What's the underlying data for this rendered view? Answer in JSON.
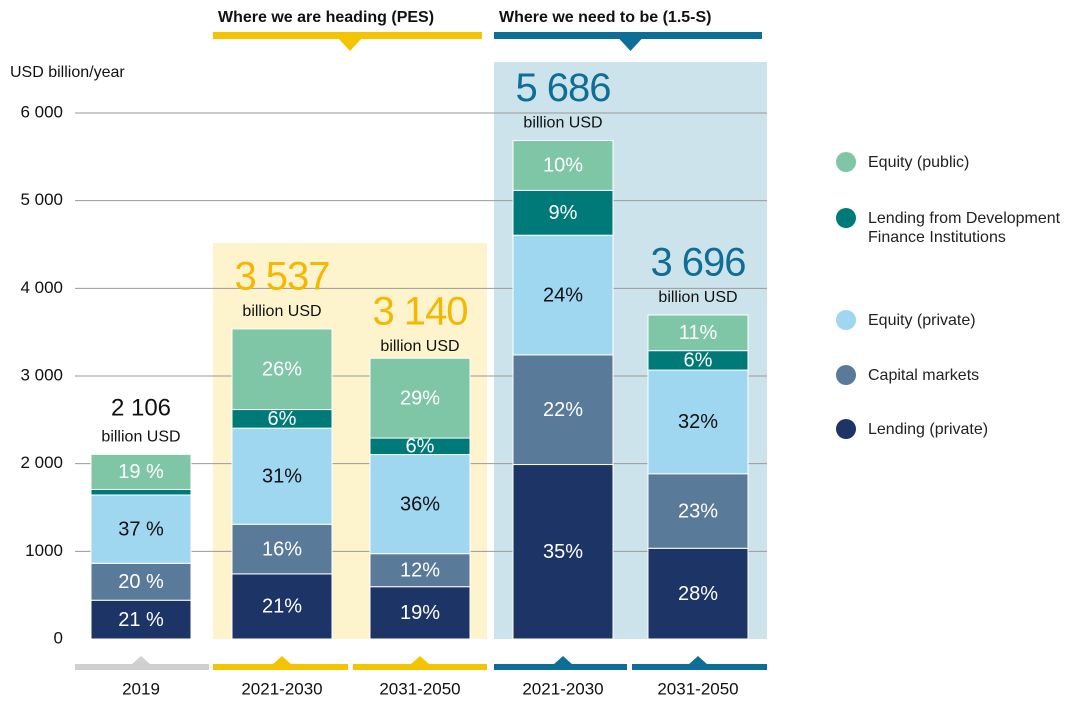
{
  "chart_data": {
    "type": "stacked_bar",
    "y_axis_label": "USD billion/year",
    "categories": [
      "2019",
      "2021-2030",
      "2031-2050",
      "2021-2030",
      "2031-2050"
    ],
    "groups": [
      {
        "label": "Where we are heading (PES)",
        "color": "#f5c400",
        "background": "#fdf3cc"
      },
      {
        "label": "Where we need to be (1.5-S)",
        "color": "#0e6f96",
        "background": "#cde3ec"
      }
    ],
    "ylim": [
      0,
      6000
    ],
    "yticks": [
      0,
      {
        "value": 1000,
        "label": "1000"
      },
      {
        "value": 2000,
        "label": "2 000"
      },
      {
        "value": 3000,
        "label": "3 000"
      },
      {
        "value": 4000,
        "label": "4 000"
      },
      {
        "value": 5000,
        "label": "5 000"
      },
      {
        "value": 6000,
        "label": "6 000"
      }
    ],
    "grid": true,
    "totals": {
      "values": [
        2106,
        3537,
        3140,
        5686,
        3696
      ],
      "value_labels": [
        "2 106",
        "3 537",
        "3 140",
        "5 686",
        "3 696"
      ],
      "unit": "billion USD"
    },
    "series": [
      {
        "name": "Lending (private)",
        "color": "#1d3466",
        "values": [
          21,
          21,
          19,
          35,
          28
        ],
        "value_labels": [
          "21 %",
          "21%",
          "19%",
          "35%",
          "28%"
        ]
      },
      {
        "name": "Capital markets",
        "color": "#5a7a99",
        "values": [
          20,
          16,
          12,
          22,
          23
        ],
        "value_labels": [
          "20 %",
          "16%",
          "12%",
          "22%",
          "23%"
        ]
      },
      {
        "name": "Equity (private)",
        "color": "#9fd6f0",
        "values": [
          37,
          31,
          36,
          24,
          32
        ],
        "value_labels": [
          "37 %",
          "31%",
          "36%",
          "24%",
          "32%"
        ]
      },
      {
        "name": "Lending from Development Finance Institutions",
        "color": "#007a78",
        "values": [
          3,
          6,
          6,
          9,
          6
        ],
        "value_labels": [
          null,
          "6%",
          "6%",
          "9%",
          "6%"
        ]
      },
      {
        "name": "Equity (public)",
        "color": "#7fc6a6",
        "values": [
          19,
          26,
          29,
          10,
          11
        ],
        "value_labels": [
          "19 %",
          "26%",
          "29%",
          "10%",
          "11%"
        ]
      }
    ]
  }
}
